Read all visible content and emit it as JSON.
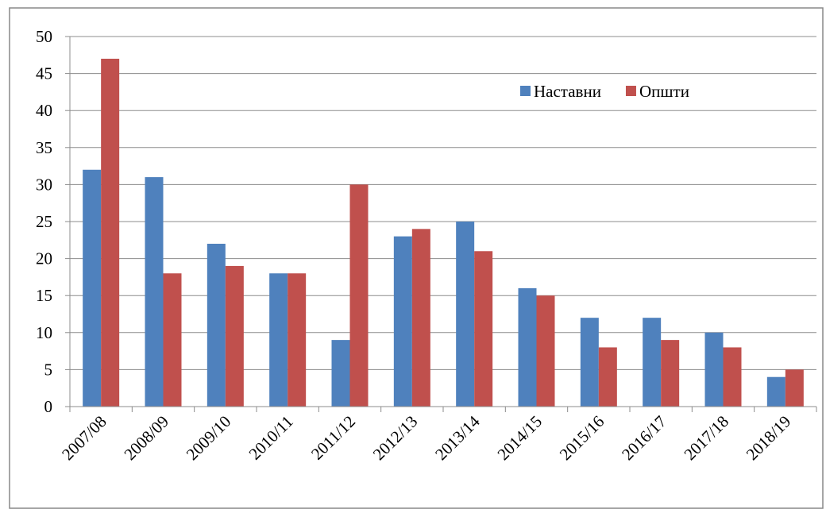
{
  "chart_data": {
    "type": "bar",
    "categories": [
      "2007/08",
      "2008/09",
      "2009/10",
      "2010/11",
      "2011/12",
      "2012/13",
      "2013/14",
      "2014/15",
      "2015/16",
      "2016/17",
      "2017/18",
      "2018/19"
    ],
    "series": [
      {
        "name": "Наставни",
        "color": "#4f81bd",
        "values": [
          32,
          31,
          22,
          18,
          9,
          23,
          25,
          16,
          12,
          12,
          10,
          4
        ]
      },
      {
        "name": "Општи",
        "color": "#c0504d",
        "values": [
          47,
          18,
          19,
          18,
          30,
          24,
          21,
          15,
          8,
          9,
          8,
          5
        ]
      }
    ],
    "ylim": [
      0,
      50
    ],
    "yticks": [
      0,
      5,
      10,
      15,
      20,
      25,
      30,
      35,
      40,
      45,
      50
    ],
    "grid": true,
    "legend": "top-right"
  }
}
